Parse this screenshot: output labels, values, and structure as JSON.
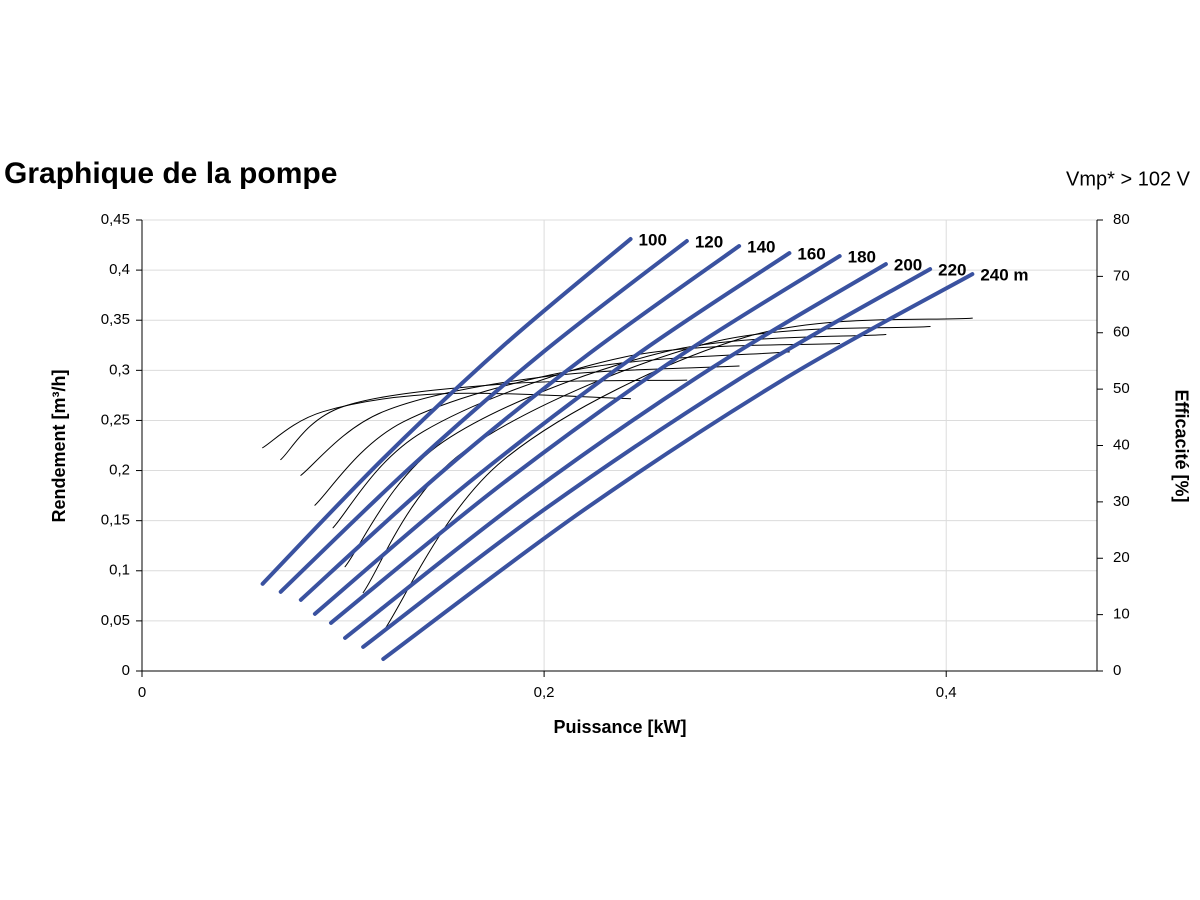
{
  "chart_data": {
    "type": "line",
    "title": "Graphique de la pompe",
    "subtitle": "Vmp* > 102 V",
    "x_label": "Puissance [kW]",
    "y_label": "Rendement [m³/h]",
    "y2_label": "Efficacité [%]",
    "xlim": [
      0,
      0.475
    ],
    "xticks": [
      0,
      {
        "value": 0.2,
        "label": "0,2"
      },
      {
        "value": 0.4,
        "label": "0,4"
      }
    ],
    "ylim": [
      0,
      0.45
    ],
    "yticks": [
      0,
      {
        "value": 0.05,
        "label": "0,05"
      },
      {
        "value": 0.1,
        "label": "0,1"
      },
      {
        "value": 0.15,
        "label": "0,15"
      },
      {
        "value": 0.2,
        "label": "0,2"
      },
      {
        "value": 0.25,
        "label": "0,25"
      },
      {
        "value": 0.3,
        "label": "0,3"
      },
      {
        "value": 0.35,
        "label": "0,35"
      },
      {
        "value": 0.4,
        "label": "0,4"
      },
      {
        "value": 0.45,
        "label": "0,45"
      }
    ],
    "y2lim": [
      0,
      80
    ],
    "y2ticks": [
      0,
      10,
      20,
      30,
      40,
      50,
      60,
      70,
      80
    ],
    "grid": true,
    "series": [
      {
        "name": "100",
        "color": "#3a52a0",
        "x": [
          0.06,
          0.12,
          0.18,
          0.243
        ],
        "values": [
          0.087,
          0.212,
          0.325,
          0.431
        ]
      },
      {
        "name": "120",
        "color": "#3a52a0",
        "x": [
          0.069,
          0.135,
          0.2,
          0.271
        ],
        "values": [
          0.079,
          0.206,
          0.319,
          0.429
        ]
      },
      {
        "name": "140",
        "color": "#3a52a0",
        "x": [
          0.079,
          0.15,
          0.22,
          0.297
        ],
        "values": [
          0.071,
          0.2,
          0.313,
          0.424
        ]
      },
      {
        "name": "160",
        "color": "#3a52a0",
        "x": [
          0.086,
          0.165,
          0.245,
          0.322
        ],
        "values": [
          0.057,
          0.192,
          0.314,
          0.417
        ]
      },
      {
        "name": "180",
        "color": "#3a52a0",
        "x": [
          0.094,
          0.18,
          0.265,
          0.347
        ],
        "values": [
          0.048,
          0.188,
          0.311,
          0.414
        ]
      },
      {
        "name": "200",
        "color": "#3a52a0",
        "x": [
          0.101,
          0.19,
          0.28,
          0.37
        ],
        "values": [
          0.033,
          0.173,
          0.298,
          0.406
        ]
      },
      {
        "name": "220",
        "color": "#3a52a0",
        "x": [
          0.11,
          0.2,
          0.3,
          0.392
        ],
        "values": [
          0.024,
          0.161,
          0.295,
          0.401
        ]
      },
      {
        "name": "240 m",
        "color": "#3a52a0",
        "x": [
          0.12,
          0.22,
          0.32,
          0.413
        ],
        "values": [
          0.012,
          0.161,
          0.292,
          0.396
        ]
      },
      {
        "axis": "y2",
        "color": "#000000",
        "x": [
          0.06,
          0.09,
          0.15,
          0.243
        ],
        "values": [
          39.6,
          46,
          49.2,
          48.3
        ]
      },
      {
        "axis": "y2",
        "color": "#000000",
        "x": [
          0.069,
          0.1,
          0.18,
          0.271
        ],
        "values": [
          37.5,
          46.9,
          50.9,
          51.6
        ]
      },
      {
        "axis": "y2",
        "color": "#000000",
        "x": [
          0.079,
          0.12,
          0.2,
          0.297
        ],
        "values": [
          34.7,
          46,
          52.2,
          54.1
        ]
      },
      {
        "axis": "y2",
        "color": "#000000",
        "x": [
          0.086,
          0.13,
          0.22,
          0.322
        ],
        "values": [
          29.4,
          44.2,
          53.7,
          56.6
        ]
      },
      {
        "axis": "y2",
        "color": "#000000",
        "x": [
          0.095,
          0.14,
          0.24,
          0.347
        ],
        "values": [
          25.4,
          42.5,
          55.7,
          58.1
        ]
      },
      {
        "axis": "y2",
        "color": "#000000",
        "x": [
          0.101,
          0.15,
          0.26,
          0.37
        ],
        "values": [
          18.5,
          40.7,
          56.6,
          59.7
        ]
      },
      {
        "axis": "y2",
        "color": "#000000",
        "x": [
          0.11,
          0.16,
          0.28,
          0.392
        ],
        "values": [
          13.9,
          38.9,
          58,
          61.1
        ]
      },
      {
        "axis": "y2",
        "color": "#000000",
        "x": [
          0.12,
          0.18,
          0.3,
          0.413
        ],
        "values": [
          7,
          37.5,
          59.2,
          62.6
        ]
      }
    ]
  }
}
